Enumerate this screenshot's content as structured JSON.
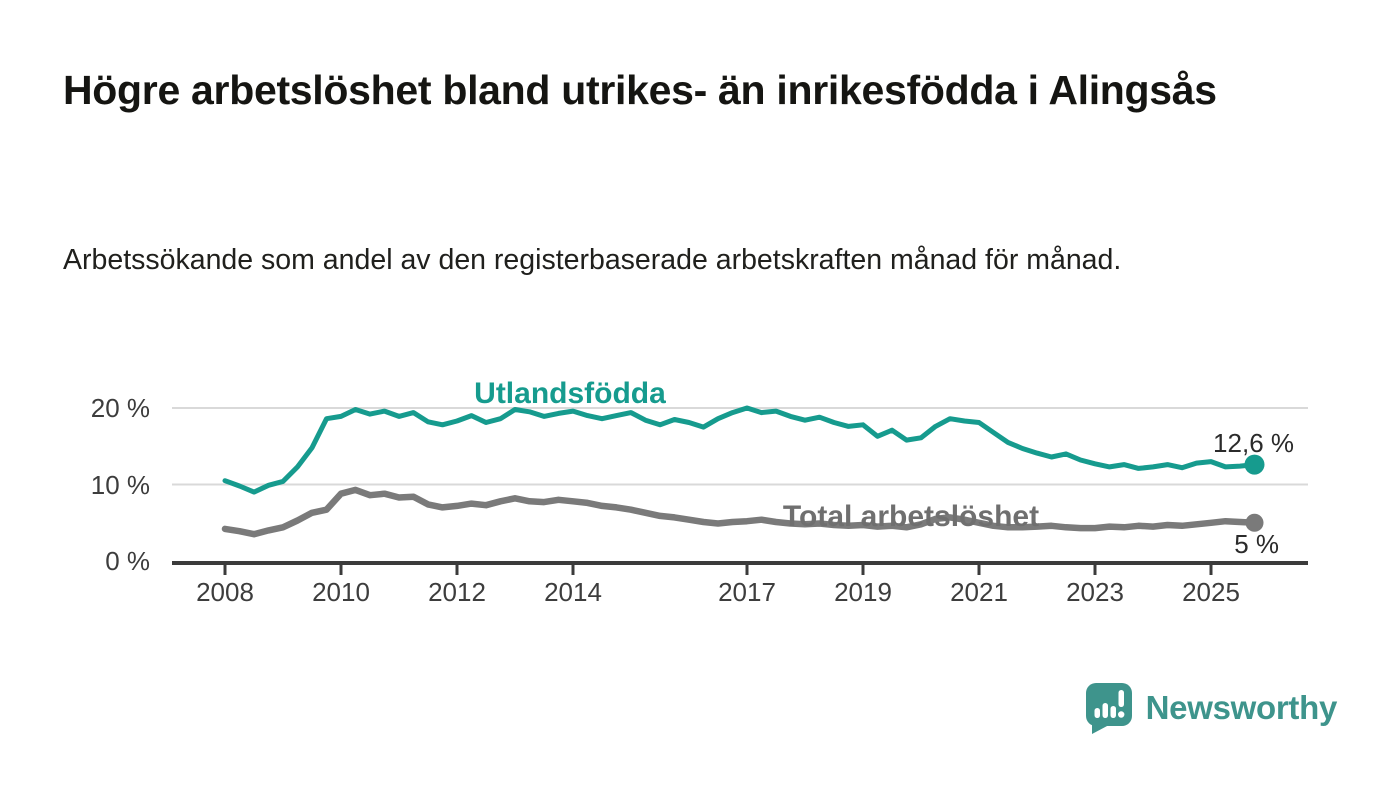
{
  "header": {
    "title": "Högre arbetslöshet bland utrikes- än inrikesfödda i Alingsås",
    "subtitle": "Arbetssökande som andel av den registerbaserade arbetskraften månad för månad."
  },
  "chart_data": {
    "type": "line",
    "title": "Högre arbetslöshet bland utrikes- än inrikesfödda i Alingsås",
    "subtitle": "Arbetssökande som andel av den registerbaserade arbetskraften månad för månad.",
    "unit": "%",
    "x_start": 2008,
    "x_step": 0.25,
    "x_end": 2025.75,
    "x_ticks": [
      2008,
      2010,
      2012,
      2014,
      2017,
      2019,
      2021,
      2023,
      2025
    ],
    "y_ticks": [
      {
        "value": 0,
        "label": "0 %"
      },
      {
        "value": 10,
        "label": "10 %"
      },
      {
        "value": 20,
        "label": "20 %"
      }
    ],
    "ylim": [
      0,
      22
    ],
    "grid": "horizontal",
    "legend_position": "inline-labels",
    "series": [
      {
        "name": "Utlandsfödda",
        "color": "#169b8e",
        "end_label": "12,6 %",
        "end_value": 12.6,
        "values": [
          10.5,
          9.8,
          9.0,
          9.9,
          10.4,
          12.3,
          14.8,
          18.6,
          18.9,
          19.8,
          19.2,
          19.6,
          18.9,
          19.4,
          18.2,
          17.8,
          18.3,
          19.0,
          18.1,
          18.6,
          19.8,
          19.5,
          18.9,
          19.3,
          19.6,
          19.0,
          18.6,
          19.0,
          19.4,
          18.4,
          17.8,
          18.5,
          18.1,
          17.5,
          18.6,
          19.4,
          20.0,
          19.4,
          19.6,
          18.9,
          18.4,
          18.8,
          18.1,
          17.6,
          17.8,
          16.3,
          17.1,
          15.8,
          16.1,
          17.6,
          18.6,
          18.3,
          18.1,
          16.8,
          15.5,
          14.7,
          14.1,
          13.6,
          14.0,
          13.2,
          12.7,
          12.3,
          12.6,
          12.1,
          12.3,
          12.6,
          12.2,
          12.8,
          13.0,
          12.3,
          12.4,
          12.6
        ]
      },
      {
        "name": "Total arbetslöshet",
        "color": "#7a7a7a",
        "label_color": "#6f6f6f",
        "end_label": "5 %",
        "end_value": 5.0,
        "values": [
          4.2,
          3.9,
          3.5,
          4.0,
          4.4,
          5.3,
          6.3,
          6.7,
          8.8,
          9.3,
          8.6,
          8.8,
          8.3,
          8.4,
          7.4,
          7.0,
          7.2,
          7.5,
          7.3,
          7.8,
          8.2,
          7.8,
          7.7,
          8.0,
          7.8,
          7.6,
          7.2,
          7.0,
          6.7,
          6.3,
          5.9,
          5.7,
          5.4,
          5.1,
          4.9,
          5.1,
          5.2,
          5.4,
          5.1,
          4.9,
          4.8,
          4.9,
          4.7,
          4.6,
          4.7,
          4.5,
          4.6,
          4.4,
          4.8,
          5.5,
          5.7,
          5.4,
          5.0,
          4.6,
          4.4,
          4.4,
          4.5,
          4.6,
          4.4,
          4.3,
          4.3,
          4.5,
          4.4,
          4.6,
          4.5,
          4.7,
          4.6,
          4.8,
          5.0,
          5.2,
          5.1,
          5.0
        ]
      }
    ],
    "colors": {
      "grid": "#d9d9d9",
      "axis": "#3b3b3b",
      "tick_text": "#3d3d3d",
      "value_text": "#2b2b2b"
    }
  },
  "footer": {
    "brand": "Newsworthy",
    "brand_color": "#3e948c"
  }
}
